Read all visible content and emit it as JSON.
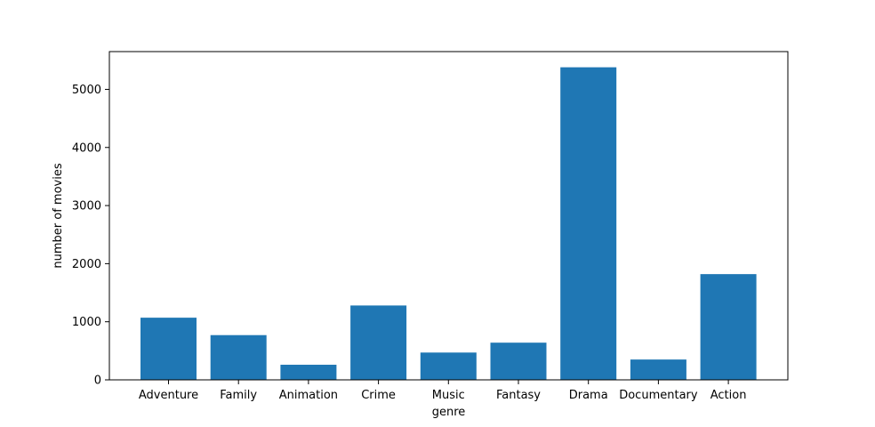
{
  "chart_data": {
    "type": "bar",
    "title": "",
    "xlabel": "genre",
    "ylabel": "number of movies",
    "categories": [
      "Adventure",
      "Family",
      "Animation",
      "Crime",
      "Music",
      "Fantasy",
      "Drama",
      "Documentary",
      "Action"
    ],
    "values": [
      1070,
      770,
      260,
      1280,
      470,
      640,
      5380,
      350,
      1820
    ],
    "ylim": [
      0,
      5650
    ],
    "yticks": [
      0,
      1000,
      2000,
      3000,
      4000,
      5000
    ],
    "bar_color": "#1f77b4",
    "grid": false,
    "legend": "none"
  }
}
